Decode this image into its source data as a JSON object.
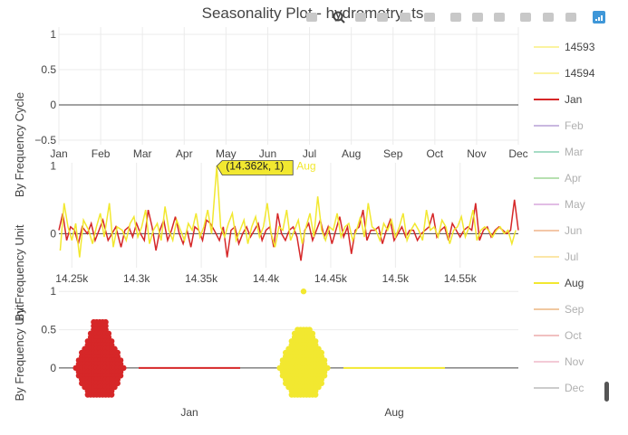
{
  "title": "Seasonality Plot - hydrometry_ts",
  "ylabels": {
    "panel1": "By Frequency Cycle",
    "panel2": "By Frequency Unit",
    "panel3": "By Frequency Unit"
  },
  "modebar": [
    "camera-icon",
    "zoom-icon",
    "pan-icon",
    "box-select-icon",
    "lasso-icon",
    "zoom-in-icon",
    "zoom-out-icon",
    "autoscale-icon",
    "home-icon",
    "spike-lines-icon",
    "hover-closest-icon",
    "hover-compare-icon",
    "plotly-logo-icon"
  ],
  "colors": {
    "Jan": "#d62728",
    "Aug": "#f2e830",
    "zero": "#444444",
    "grid": "#ebebeb"
  },
  "legend": [
    {
      "label": "14593",
      "color": "#fbf3a0",
      "dim": false
    },
    {
      "label": "14594",
      "color": "#fbf3a0",
      "dim": false
    },
    {
      "label": "Jan",
      "color": "#d62728",
      "dim": false
    },
    {
      "label": "Feb",
      "color": "#c9b8e0",
      "dim": true
    },
    {
      "label": "Mar",
      "color": "#a6dcc6",
      "dim": true
    },
    {
      "label": "Apr",
      "color": "#b7e0b0",
      "dim": true
    },
    {
      "label": "May",
      "color": "#e2bde5",
      "dim": true
    },
    {
      "label": "Jun",
      "color": "#f3c7a8",
      "dim": true
    },
    {
      "label": "Jul",
      "color": "#fbe6a7",
      "dim": true
    },
    {
      "label": "Aug",
      "color": "#f2e830",
      "dim": false
    },
    {
      "label": "Sep",
      "color": "#f0c8a0",
      "dim": true
    },
    {
      "label": "Oct",
      "color": "#f1c0c0",
      "dim": true
    },
    {
      "label": "Nov",
      "color": "#f3cad6",
      "dim": true
    },
    {
      "label": "Dec",
      "color": "#cccccc",
      "dim": true
    }
  ],
  "chart_data": [
    {
      "type": "line",
      "panel": "cycle",
      "categories": [
        "Jan",
        "Feb",
        "Mar",
        "Apr",
        "May",
        "Jun",
        "Jul",
        "Aug",
        "Sep",
        "Oct",
        "Nov",
        "Dec"
      ],
      "ylim": [
        -0.5,
        1
      ],
      "yticks": [
        "1",
        "0.5",
        "0",
        "−0.5"
      ],
      "yticks_values": [
        1,
        0.5,
        0,
        -0.5
      ],
      "series": [
        {
          "name": "14593",
          "values": [
            0,
            0,
            0,
            0,
            0,
            0,
            0,
            0,
            0,
            0,
            0,
            0
          ]
        },
        {
          "name": "14594",
          "values": [
            0,
            0,
            0,
            0,
            0,
            0,
            0,
            0,
            0,
            0,
            0,
            0
          ]
        }
      ]
    },
    {
      "type": "line",
      "panel": "unit",
      "xlim": [
        14240,
        14595
      ],
      "xticks": [
        "14.25k",
        "14.3k",
        "14.35k",
        "14.4k",
        "14.45k",
        "14.5k",
        "14.55k"
      ],
      "xticks_values": [
        14250,
        14300,
        14350,
        14400,
        14450,
        14500,
        14550
      ],
      "ylim": [
        -0.45,
        1.1
      ],
      "yticks": [
        "1",
        "0"
      ],
      "yticks_values": [
        1,
        0
      ],
      "series_names": [
        "Jan",
        "Aug"
      ],
      "series": [
        {
          "name": "Jan",
          "x": [
            14240,
            14243,
            14246,
            14249,
            14252,
            14255,
            14258,
            14262,
            14265,
            14268,
            14271,
            14274,
            14278,
            14281,
            14284,
            14288,
            14291,
            14294,
            14297,
            14300,
            14303,
            14306,
            14309,
            14312,
            14315,
            14318,
            14321,
            14324,
            14327,
            14330,
            14333,
            14336,
            14339,
            14342,
            14345,
            14348,
            14351,
            14354,
            14357,
            14360,
            14364,
            14367,
            14370,
            14373,
            14376,
            14379,
            14382,
            14385,
            14388,
            14391,
            14394,
            14397,
            14400,
            14403,
            14406,
            14409,
            14412,
            14415,
            14418,
            14421,
            14424,
            14427,
            14430,
            14433,
            14436,
            14439,
            14442,
            14445,
            14448,
            14451,
            14454,
            14457,
            14460,
            14463,
            14466,
            14469,
            14472,
            14475,
            14478,
            14481,
            14484,
            14487,
            14490,
            14493,
            14496,
            14499,
            14502,
            14505,
            14508,
            14511,
            14514,
            14517,
            14520,
            14523,
            14526,
            14529,
            14532,
            14535,
            14538,
            14541,
            14544,
            14547,
            14550,
            14553,
            14556,
            14559,
            14562,
            14565,
            14568,
            14571,
            14574,
            14577,
            14580,
            14583,
            14586,
            14589,
            14592,
            14595
          ],
          "values": [
            0.05,
            0.3,
            -0.1,
            0.1,
            0.05,
            -0.15,
            0.1,
            0,
            0.15,
            -0.1,
            0.05,
            0.2,
            -0.1,
            0,
            0.1,
            -0.2,
            0.05,
            0.1,
            -0.05,
            0.15,
            0,
            -0.1,
            0.35,
            0.1,
            -0.25,
            0.05,
            0.2,
            -0.1,
            0.05,
            0.25,
            0,
            -0.15,
            0.05,
            -0.2,
            0.1,
            0.05,
            -0.1,
            0.2,
            0.15,
            0.05,
            -0.1,
            0.1,
            -0.35,
            0.05,
            0.1,
            -0.15,
            0,
            0.1,
            -0.05,
            0.05,
            0.15,
            -0.1,
            0.05,
            0.1,
            -0.2,
            0.3,
            0,
            -0.1,
            0.05,
            0.1,
            -0.05,
            -0.4,
            0.05,
            0.15,
            -0.1,
            0.05,
            0.2,
            -0.05,
            0.1,
            -0.15,
            0.05,
            0.25,
            -0.05,
            0.1,
            -0.3,
            0.05,
            0.1,
            0.35,
            -0.1,
            0.05,
            0.05,
            0.1,
            -0.15,
            0.05,
            0.2,
            -0.1,
            0,
            0.1,
            -0.05,
            0.05,
            0.05,
            -0.1,
            0,
            0.05,
            0.1,
            0.3,
            -0.05,
            0.05,
            0.1,
            -0.1,
            0.15,
            0.05,
            -0.05,
            0.05,
            0.1,
            0.05,
            0.45,
            -0.1,
            0.05,
            0.1,
            -0.05,
            0.05,
            0.1,
            0.05,
            0,
            0.05,
            0.5,
            0.05
          ]
        },
        {
          "name": "Aug",
          "x": [
            14241,
            14244,
            14247,
            14250,
            14253,
            14256,
            14259,
            14263,
            14266,
            14269,
            14272,
            14275,
            14279,
            14282,
            14285,
            14289,
            14292,
            14295,
            14298,
            14301,
            14304,
            14307,
            14310,
            14313,
            14316,
            14319,
            14322,
            14325,
            14328,
            14331,
            14334,
            14337,
            14340,
            14343,
            14346,
            14349,
            14352,
            14355,
            14358,
            14362,
            14365,
            14368,
            14371,
            14374,
            14377,
            14380,
            14383,
            14386,
            14389,
            14392,
            14395,
            14398,
            14401,
            14404,
            14407,
            14410,
            14413,
            14416,
            14419,
            14422,
            14425,
            14428,
            14431,
            14434,
            14437,
            14440,
            14443,
            14446,
            14449,
            14452,
            14455,
            14458,
            14461,
            14464,
            14467,
            14470,
            14473,
            14476,
            14479,
            14482,
            14485,
            14488,
            14491,
            14494,
            14497,
            14500,
            14503,
            14506,
            14509,
            14512,
            14515,
            14518,
            14521,
            14524,
            14527,
            14530,
            14533,
            14536,
            14539,
            14542,
            14545,
            14548,
            14551,
            14554,
            14557,
            14560,
            14563,
            14566,
            14569,
            14572,
            14575,
            14578,
            14581,
            14584,
            14587,
            14590,
            14593
          ],
          "values": [
            -0.25,
            0.45,
            0.1,
            -0.1,
            0.15,
            -0.35,
            0.2,
            0.05,
            -0.15,
            0.1,
            0.3,
            -0.05,
            0.45,
            -0.2,
            0.1,
            0.05,
            -0.1,
            0.15,
            0.25,
            -0.05,
            0.1,
            0.35,
            -0.15,
            0.05,
            0.15,
            -0.1,
            0.4,
            0.05,
            -0.1,
            0.2,
            0.05,
            -0.1,
            0.15,
            0.05,
            0.3,
            -0.05,
            0.1,
            0.35,
            0,
            1,
            0.1,
            -0.05,
            0.15,
            0.3,
            -0.1,
            0.05,
            0.2,
            -0.15,
            0.1,
            0.25,
            -0.05,
            0.1,
            0.45,
            0,
            -0.2,
            0.1,
            0.05,
            0.35,
            -0.1,
            0.05,
            0.2,
            -0.15,
            0.1,
            0.3,
            -0.05,
            0.55,
            0.05,
            -0.1,
            0.1,
            0.05,
            0.3,
            -0.05,
            0.1,
            0.15,
            -0.1,
            0.05,
            0.25,
            -0.05,
            0.45,
            0.1,
            0.05,
            -0.1,
            0.15,
            0.05,
            0.2,
            -0.05,
            0.1,
            0.3,
            -0.1,
            0.05,
            0.15,
            0.05,
            -0.1,
            0.35,
            0.05,
            0.1,
            -0.05,
            0.2,
            0.1,
            -0.15,
            0.05,
            0.1,
            0.25,
            -0.05,
            0.1,
            0.35,
            -0.1,
            0.05,
            0.1,
            0.05,
            -0.05,
            0.05,
            0.1,
            0,
            0.05,
            -0.15,
            0.05
          ]
        }
      ],
      "hover": {
        "x_label": "(14.362k, 1)",
        "series": "Aug"
      }
    },
    {
      "type": "scatter",
      "panel": "distribution",
      "categories": [
        "Jan",
        "Aug"
      ],
      "ylim": [
        -0.45,
        1.05
      ],
      "yticks": [
        "1",
        "0.5",
        "0"
      ],
      "yticks_values": [
        1,
        0.5,
        0
      ],
      "series": [
        {
          "name": "Jan",
          "values": [
            0.6,
            0.55,
            0.5,
            0.45,
            0.4,
            0.35,
            0.3,
            0.25,
            0.2,
            0.15,
            0.1,
            0.05,
            0,
            -0.05,
            -0.1,
            -0.15,
            -0.2,
            -0.25,
            -0.3,
            -0.35
          ]
        },
        {
          "name": "Aug",
          "values": [
            1,
            0.5,
            0.45,
            0.4,
            0.35,
            0.3,
            0.25,
            0.2,
            0.15,
            0.1,
            0.05,
            0,
            -0.05,
            -0.1,
            -0.15,
            -0.2,
            -0.25,
            -0.3,
            -0.35
          ]
        }
      ]
    }
  ]
}
